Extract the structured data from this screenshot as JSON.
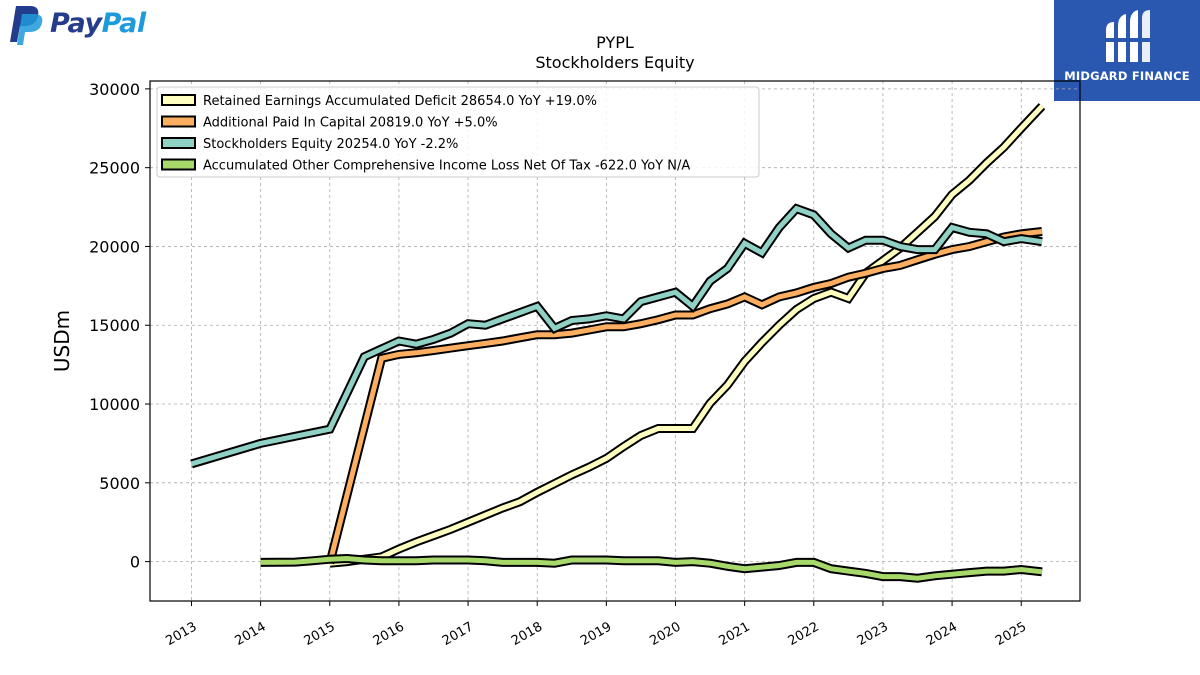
{
  "brand_left": {
    "name_part1": "Pay",
    "name_part2": "Pal",
    "colors": {
      "dark": "#233c8b",
      "light": "#1d9ad9"
    }
  },
  "brand_right": {
    "name": "MIDGARD FINANCE",
    "background": "#2a58b0"
  },
  "chart_data": {
    "type": "line",
    "title": "PYPL",
    "subtitle": "Stockholders  Equity",
    "ylabel": "USDm",
    "xlabel": "",
    "ylim": [
      -2500,
      30500
    ],
    "xlim": [
      2012.4,
      2025.85
    ],
    "yticks": [
      0,
      5000,
      10000,
      15000,
      20000,
      25000,
      30000
    ],
    "xticks": [
      2013,
      2014,
      2015,
      2016,
      2017,
      2018,
      2019,
      2020,
      2021,
      2022,
      2023,
      2024,
      2025
    ],
    "grid": true,
    "legend_position": "top-left",
    "series": [
      {
        "name": "Retained Earnings Accumulated Deficit",
        "legend_label": "Retained Earnings Accumulated Deficit  28654.0 YoY +19.0%",
        "color": "#ffffbf",
        "x": [
          2015.0,
          2015.25,
          2015.5,
          2015.75,
          2016.0,
          2016.25,
          2016.5,
          2016.75,
          2017.0,
          2017.25,
          2017.5,
          2017.75,
          2018.0,
          2018.25,
          2018.5,
          2018.75,
          2019.0,
          2019.25,
          2019.5,
          2019.75,
          2020.0,
          2020.25,
          2020.5,
          2020.75,
          2021.0,
          2021.25,
          2021.5,
          2021.75,
          2022.0,
          2022.25,
          2022.5,
          2022.75,
          2023.0,
          2023.25,
          2023.5,
          2023.75,
          2024.0,
          2024.25,
          2024.5,
          2024.75,
          2025.0,
          2025.3
        ],
        "y": [
          -100,
          0,
          150,
          300,
          800,
          1250,
          1650,
          2050,
          2500,
          2950,
          3400,
          3800,
          4400,
          4950,
          5500,
          6000,
          6550,
          7300,
          8000,
          8450,
          8450,
          8450,
          10050,
          11200,
          12700,
          13900,
          15000,
          16000,
          16700,
          17100,
          16700,
          18300,
          19100,
          19900,
          20900,
          21900,
          23300,
          24200,
          25300,
          26300,
          27500,
          28900
        ]
      },
      {
        "name": "Additional Paid In Capital",
        "legend_label": "Additional Paid In Capital  20819.0 YoY +5.0%",
        "color": "#fdae61",
        "x": [
          2015.0,
          2015.75,
          2016.0,
          2016.25,
          2016.5,
          2016.75,
          2017.0,
          2017.25,
          2017.5,
          2017.75,
          2018.0,
          2018.25,
          2018.5,
          2018.75,
          2019.0,
          2019.25,
          2019.5,
          2019.75,
          2020.0,
          2020.25,
          2020.5,
          2020.75,
          2021.0,
          2021.25,
          2021.5,
          2021.75,
          2022.0,
          2022.25,
          2022.5,
          2022.75,
          2023.0,
          2023.25,
          2023.5,
          2023.75,
          2024.0,
          2024.25,
          2024.5,
          2024.75,
          2025.0,
          2025.3
        ],
        "y": [
          -100,
          12900,
          13150,
          13250,
          13400,
          13550,
          13700,
          13850,
          14000,
          14200,
          14400,
          14400,
          14500,
          14700,
          14900,
          14900,
          15100,
          15350,
          15650,
          15650,
          16050,
          16350,
          16800,
          16300,
          16800,
          17050,
          17400,
          17650,
          18050,
          18300,
          18600,
          18800,
          19150,
          19500,
          19800,
          20000,
          20300,
          20600,
          20800,
          20950
        ]
      },
      {
        "name": "Stockholders Equity",
        "legend_label": "Stockholders Equity  20254.0 YoY -2.2%",
        "color": "#8fd1c4",
        "x": [
          2013.0,
          2014.0,
          2015.0,
          2015.5,
          2015.75,
          2016.0,
          2016.25,
          2016.5,
          2016.75,
          2017.0,
          2017.25,
          2017.5,
          2017.75,
          2018.0,
          2018.25,
          2018.5,
          2018.75,
          2019.0,
          2019.25,
          2019.5,
          2019.75,
          2020.0,
          2020.25,
          2020.5,
          2020.75,
          2021.0,
          2021.25,
          2021.5,
          2021.75,
          2022.0,
          2022.25,
          2022.5,
          2022.75,
          2023.0,
          2023.25,
          2023.5,
          2023.75,
          2024.0,
          2024.25,
          2024.5,
          2024.75,
          2025.0,
          2025.3
        ],
        "y": [
          6200,
          7500,
          8400,
          13000,
          13500,
          14000,
          13800,
          14100,
          14500,
          15100,
          15000,
          15400,
          15800,
          16200,
          14800,
          15300,
          15400,
          15600,
          15400,
          16500,
          16800,
          17100,
          16200,
          17800,
          18600,
          20200,
          19600,
          21200,
          22400,
          22000,
          20800,
          19900,
          20400,
          20400,
          20000,
          19800,
          19800,
          21200,
          20900,
          20800,
          20300,
          20500,
          20300
        ]
      },
      {
        "name": "Accumulated Other Comprehensive Income Loss Net Of Tax",
        "legend_label": "Accumulated Other Comprehensive Income Loss Net Of Tax  -622.0 YoY N/A",
        "color": "#a6d96a",
        "x": [
          2014.0,
          2014.5,
          2014.75,
          2015.0,
          2015.25,
          2015.5,
          2015.75,
          2016.0,
          2016.25,
          2016.5,
          2016.75,
          2017.0,
          2017.25,
          2017.5,
          2017.75,
          2018.0,
          2018.25,
          2018.5,
          2018.75,
          2019.0,
          2019.25,
          2019.5,
          2019.75,
          2020.0,
          2020.25,
          2020.5,
          2020.75,
          2021.0,
          2021.25,
          2021.5,
          2021.75,
          2022.0,
          2022.25,
          2022.5,
          2022.75,
          2023.0,
          2023.25,
          2023.5,
          2023.75,
          2024.0,
          2024.25,
          2024.5,
          2024.75,
          2025.0,
          2025.3
        ],
        "y": [
          -50,
          -30,
          50,
          150,
          200,
          100,
          50,
          50,
          50,
          100,
          100,
          100,
          50,
          -50,
          -50,
          -50,
          -100,
          100,
          100,
          100,
          50,
          50,
          50,
          -50,
          0,
          -100,
          -300,
          -450,
          -350,
          -250,
          -50,
          -50,
          -450,
          -600,
          -750,
          -950,
          -950,
          -1050,
          -900,
          -800,
          -700,
          -600,
          -600,
          -500,
          -650
        ]
      }
    ]
  }
}
